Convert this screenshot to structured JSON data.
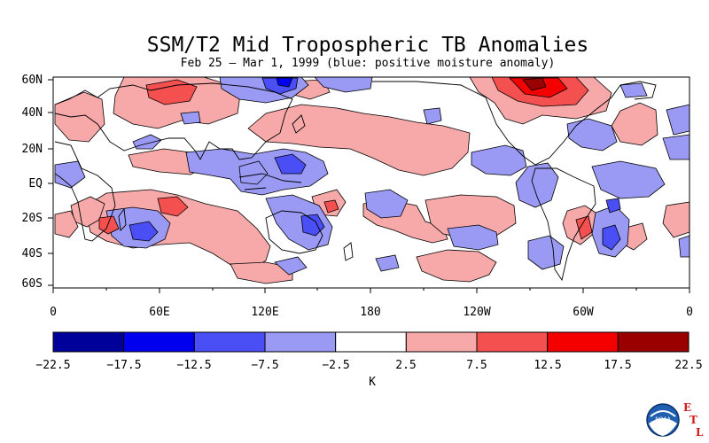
{
  "title": "SSM/T2 Mid Tropospheric TB Anomalies",
  "subtitle": "Feb 25 – Mar 1, 1999 (blue: positive moisture anomaly)",
  "map": {
    "lat_labels": [
      "60N",
      "40N",
      "20N",
      "EQ",
      "20S",
      "40S",
      "60S"
    ],
    "lon_labels": [
      "0",
      "60E",
      "120E",
      "180",
      "120W",
      "60W",
      "0"
    ]
  },
  "colorbar": {
    "labels": [
      "−22.5",
      "−17.5",
      "−12.5",
      "−7.5",
      "−2.5",
      "2.5",
      "7.5",
      "12.5",
      "17.5",
      "22.5"
    ],
    "colors": [
      "#00009a",
      "#0000ee",
      "#4a4ef5",
      "#9a9af5",
      "#ffffff",
      "#f7a8a8",
      "#f55050",
      "#f50000",
      "#9a0000"
    ],
    "units": "K"
  },
  "logo": {
    "noaa_text": "NOAA",
    "etl_letters": [
      "E",
      "T",
      "L"
    ]
  },
  "colors": {
    "blue_mid": "#9a9af5",
    "blue_strong": "#4a4ef5",
    "blue_deep": "#0000ee",
    "red_mid": "#f7a8a8",
    "red_strong": "#f55050",
    "red_deep": "#f50000",
    "red_darkest": "#9a0000"
  }
}
